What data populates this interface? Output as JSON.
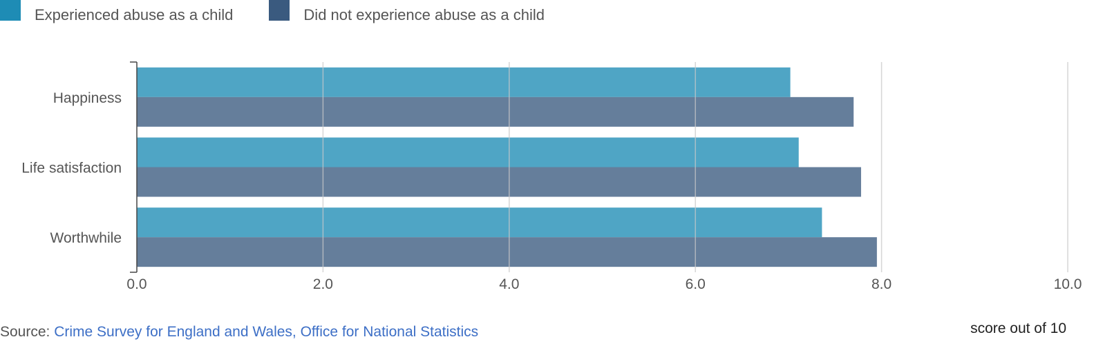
{
  "colors": {
    "series1": "#1e8cb5",
    "series2": "#3a5a7f",
    "grid": "#c8c8c8",
    "axis": "#444444",
    "text": "#555555",
    "link": "#3d6fc6"
  },
  "source": {
    "prefix": "Source: ",
    "link_text": "Crime Survey for England and Wales, Office for National Statistics"
  },
  "chart_data": {
    "type": "bar",
    "orientation": "horizontal",
    "categories": [
      "Happiness",
      "Life satisfaction",
      "Worthwhile"
    ],
    "series": [
      {
        "name": "Experienced abuse as a child",
        "values": [
          7.02,
          7.11,
          7.36
        ]
      },
      {
        "name": "Did not experience abuse as a child",
        "values": [
          7.7,
          7.78,
          7.95
        ]
      }
    ],
    "xlim": [
      0,
      10
    ],
    "xticks": [
      "0.0",
      "2.0",
      "4.0",
      "6.0",
      "8.0",
      "10.0"
    ],
    "xlabel": "score out of 10",
    "grid": true,
    "legend_position": "top-left"
  }
}
